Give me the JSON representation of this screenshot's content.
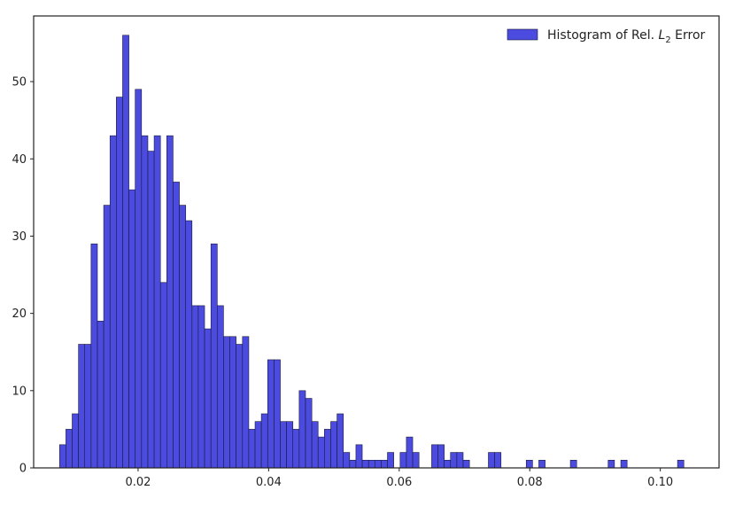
{
  "chart_data": {
    "type": "bar",
    "title": "",
    "xlabel": "",
    "ylabel": "",
    "xlim": [
      0.004,
      0.109
    ],
    "ylim": [
      0,
      58.5
    ],
    "x_ticks": [
      0.02,
      0.04,
      0.06,
      0.08,
      0.1
    ],
    "x_tick_labels": [
      "0.02",
      "0.04",
      "0.06",
      "0.08",
      "0.10"
    ],
    "y_ticks": [
      0,
      10,
      20,
      30,
      40,
      50
    ],
    "y_tick_labels": [
      "0",
      "10",
      "20",
      "30",
      "40",
      "50"
    ],
    "grid": false,
    "legend_position": "top-right",
    "bar_color": "#4b4bdf",
    "bar_edge_color": "#1a1a3a",
    "bin_width": 0.000966,
    "series": [
      {
        "name": "Histogram of Rel. L2 Error",
        "legend_prefix": "Histogram of Rel. ",
        "legend_symbol": "L",
        "legend_subscript": "2",
        "legend_suffix": " Error",
        "bin_starts": [
          0.00797,
          0.00894,
          0.0099,
          0.01087,
          0.01183,
          0.0128,
          0.01377,
          0.01473,
          0.0157,
          0.01666,
          0.01763,
          0.0186,
          0.01956,
          0.02053,
          0.0215,
          0.02246,
          0.02343,
          0.02439,
          0.02536,
          0.02633,
          0.02729,
          0.02826,
          0.02922,
          0.03019,
          0.03116,
          0.03212,
          0.03309,
          0.03405,
          0.03502,
          0.03599,
          0.03695,
          0.03792,
          0.03888,
          0.03985,
          0.04082,
          0.04178,
          0.04275,
          0.04371,
          0.04468,
          0.04565,
          0.04661,
          0.04758,
          0.04854,
          0.04951,
          0.05048,
          0.05144,
          0.05241,
          0.05337,
          0.05434,
          0.05531,
          0.05627,
          0.05724,
          0.0582,
          0.05917,
          0.06014,
          0.0611,
          0.06207,
          0.06303,
          0.064,
          0.06497,
          0.06593,
          0.0669,
          0.06786,
          0.06883,
          0.0698,
          0.07076,
          0.07173,
          0.07269,
          0.07366,
          0.07463,
          0.07559,
          0.07656,
          0.07752,
          0.07849,
          0.07946,
          0.08042,
          0.08139,
          0.08235,
          0.08332,
          0.08429,
          0.08525,
          0.08622,
          0.08718,
          0.08815,
          0.08912,
          0.09008,
          0.09105,
          0.09201,
          0.09298,
          0.09395,
          0.09491,
          0.09588,
          0.09684,
          0.09781,
          0.09878,
          0.09974,
          0.10071,
          0.10167,
          0.10264
        ],
        "counts": [
          3,
          5,
          7,
          16,
          16,
          29,
          19,
          34,
          43,
          48,
          56,
          36,
          49,
          43,
          41,
          43,
          24,
          43,
          37,
          34,
          32,
          21,
          21,
          18,
          29,
          21,
          17,
          17,
          16,
          17,
          5,
          6,
          7,
          14,
          14,
          6,
          6,
          5,
          10,
          9,
          6,
          4,
          5,
          6,
          7,
          2,
          1,
          3,
          1,
          1,
          1,
          1,
          2,
          0,
          2,
          4,
          2,
          0,
          0,
          3,
          3,
          1,
          2,
          2,
          1,
          0,
          0,
          0,
          2,
          2,
          0,
          0,
          0,
          0,
          1,
          0,
          1,
          0,
          0,
          0,
          0,
          1,
          0,
          0,
          0,
          0,
          0,
          1,
          0,
          1,
          0,
          0,
          0,
          0,
          0,
          0,
          0,
          0,
          1
        ]
      }
    ]
  }
}
